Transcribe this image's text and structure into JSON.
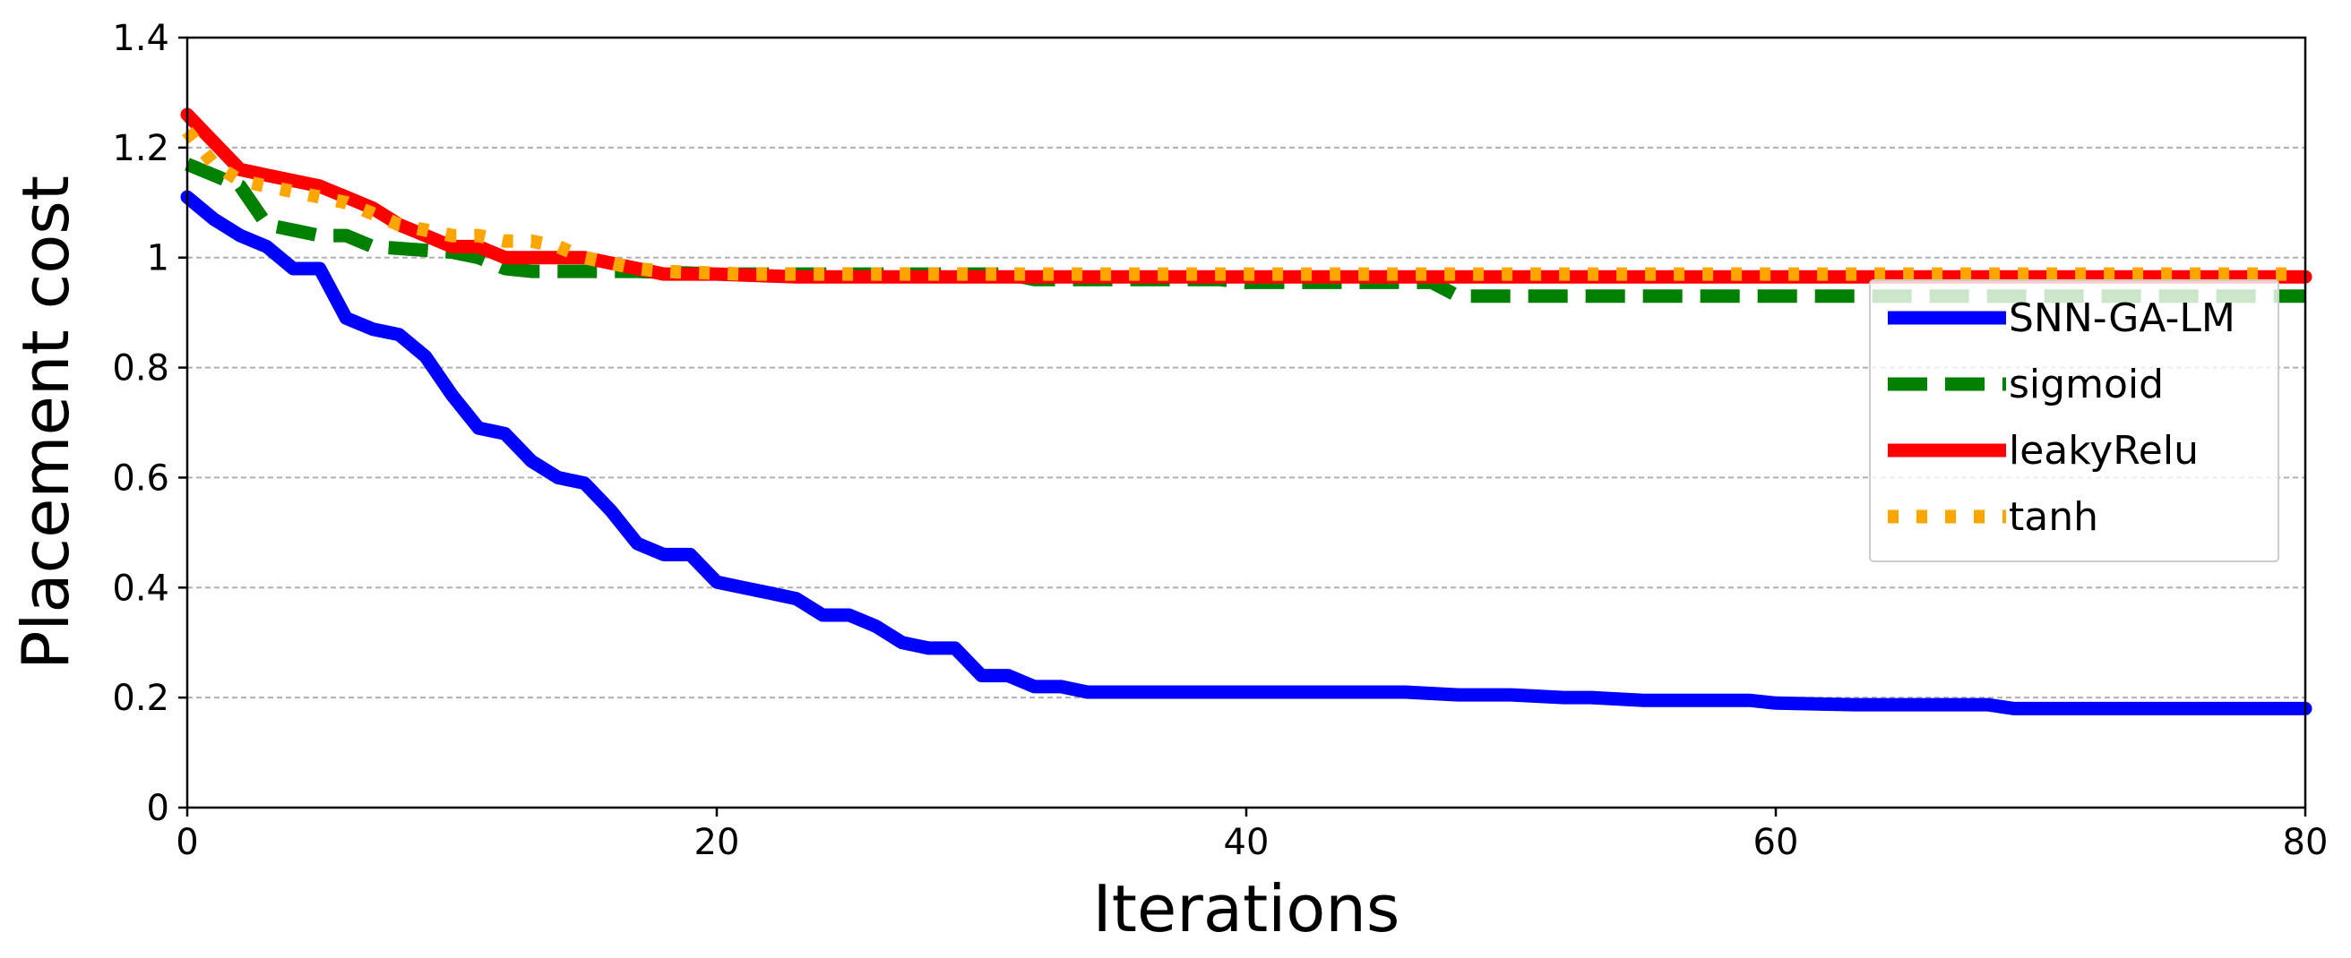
{
  "chart_data": {
    "type": "line",
    "title": "",
    "xlabel": "Iterations",
    "ylabel": "Placement cost",
    "xlim": [
      0,
      80
    ],
    "ylim": [
      0,
      1.4
    ],
    "xticks": [
      0,
      20,
      40,
      60,
      80
    ],
    "yticks": [
      0,
      0.2,
      0.4,
      0.6,
      0.8,
      1,
      1.2,
      1.4
    ],
    "ytick_labels": [
      "0",
      "0.2",
      "0.4",
      "0.6",
      "0.8",
      "1",
      "1.2",
      "1.4"
    ],
    "grid": "y-dashed",
    "legend_position": "right",
    "series": [
      {
        "name": "SNN-GA-LM",
        "color": "#0000ff",
        "style": "solid",
        "points": [
          [
            0,
            1.11
          ],
          [
            1,
            1.07
          ],
          [
            2,
            1.04
          ],
          [
            3,
            1.02
          ],
          [
            4,
            0.98
          ],
          [
            5,
            0.98
          ],
          [
            6,
            0.89
          ],
          [
            7,
            0.87
          ],
          [
            8,
            0.86
          ],
          [
            9,
            0.82
          ],
          [
            10,
            0.75
          ],
          [
            11,
            0.69
          ],
          [
            12,
            0.68
          ],
          [
            13,
            0.63
          ],
          [
            14,
            0.6
          ],
          [
            15,
            0.59
          ],
          [
            16,
            0.54
          ],
          [
            17,
            0.48
          ],
          [
            18,
            0.46
          ],
          [
            19,
            0.46
          ],
          [
            20,
            0.41
          ],
          [
            21,
            0.4
          ],
          [
            22,
            0.39
          ],
          [
            23,
            0.38
          ],
          [
            24,
            0.35
          ],
          [
            25,
            0.35
          ],
          [
            26,
            0.33
          ],
          [
            27,
            0.3
          ],
          [
            28,
            0.29
          ],
          [
            29,
            0.29
          ],
          [
            30,
            0.24
          ],
          [
            31,
            0.24
          ],
          [
            32,
            0.22
          ],
          [
            33,
            0.22
          ],
          [
            34,
            0.21
          ],
          [
            38,
            0.21
          ],
          [
            46,
            0.21
          ],
          [
            48,
            0.205
          ],
          [
            50,
            0.205
          ],
          [
            52,
            0.2
          ],
          [
            53,
            0.2
          ],
          [
            55,
            0.195
          ],
          [
            59,
            0.195
          ],
          [
            60,
            0.19
          ],
          [
            63,
            0.187
          ],
          [
            68,
            0.187
          ],
          [
            69,
            0.18
          ],
          [
            80,
            0.18
          ]
        ]
      },
      {
        "name": "sigmoid",
        "color": "#008000",
        "style": "dashed",
        "points": [
          [
            0,
            1.17
          ],
          [
            2,
            1.13
          ],
          [
            3,
            1.06
          ],
          [
            4,
            1.05
          ],
          [
            5,
            1.04
          ],
          [
            6,
            1.04
          ],
          [
            7,
            1.02
          ],
          [
            10,
            1.01
          ],
          [
            11,
            1.0
          ],
          [
            12,
            0.98
          ],
          [
            13,
            0.975
          ],
          [
            14,
            0.975
          ],
          [
            17,
            0.975
          ],
          [
            20,
            0.97
          ],
          [
            31,
            0.97
          ],
          [
            32,
            0.96
          ],
          [
            39,
            0.96
          ],
          [
            40,
            0.955
          ],
          [
            47,
            0.955
          ],
          [
            48,
            0.93
          ],
          [
            80,
            0.93
          ]
        ]
      },
      {
        "name": "leakyRelu",
        "color": "#ff0000",
        "style": "solid",
        "points": [
          [
            0,
            1.26
          ],
          [
            1,
            1.21
          ],
          [
            2,
            1.16
          ],
          [
            3,
            1.15
          ],
          [
            4,
            1.14
          ],
          [
            5,
            1.13
          ],
          [
            6,
            1.11
          ],
          [
            7,
            1.09
          ],
          [
            8,
            1.06
          ],
          [
            9,
            1.04
          ],
          [
            10,
            1.02
          ],
          [
            11,
            1.02
          ],
          [
            12,
            1.0
          ],
          [
            15,
            1.0
          ],
          [
            16,
            0.99
          ],
          [
            17,
            0.98
          ],
          [
            18,
            0.97
          ],
          [
            20,
            0.97
          ],
          [
            23,
            0.965
          ],
          [
            80,
            0.965
          ]
        ]
      },
      {
        "name": "tanh",
        "color": "#ffa500",
        "style": "dotted",
        "points": [
          [
            0,
            1.23
          ],
          [
            1,
            1.17
          ],
          [
            2,
            1.14
          ],
          [
            3,
            1.13
          ],
          [
            4,
            1.12
          ],
          [
            5,
            1.11
          ],
          [
            6,
            1.1
          ],
          [
            7,
            1.08
          ],
          [
            8,
            1.06
          ],
          [
            9,
            1.05
          ],
          [
            10,
            1.04
          ],
          [
            11,
            1.04
          ],
          [
            12,
            1.03
          ],
          [
            13,
            1.03
          ],
          [
            14,
            1.02
          ],
          [
            15,
            1.0
          ],
          [
            16,
            0.99
          ],
          [
            17,
            0.98
          ],
          [
            18,
            0.975
          ],
          [
            21,
            0.97
          ],
          [
            80,
            0.97
          ]
        ]
      }
    ]
  }
}
